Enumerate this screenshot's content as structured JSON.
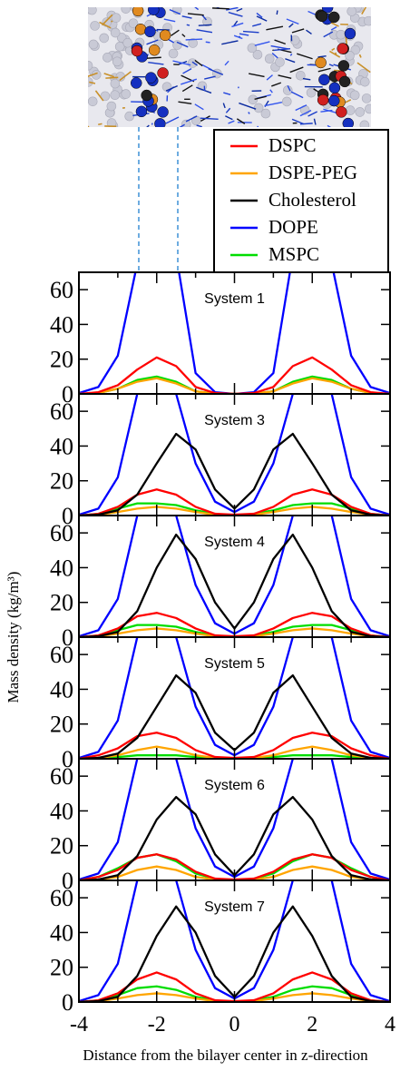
{
  "chart_data": {
    "type": "line",
    "xlabel": "Distance from the bilayer center in z-direction",
    "ylabel": "Mass density (kg/m³)",
    "xlim": [
      -4,
      4
    ],
    "ylim": [
      0,
      70
    ],
    "xticks": [
      -4,
      -2,
      0,
      2,
      4
    ],
    "yticks": [
      0,
      20,
      40,
      60
    ],
    "legend": {
      "position": "top-right",
      "entries": [
        {
          "name": "DSPC",
          "color": "#ff0000"
        },
        {
          "name": "DSPE-PEG",
          "color": "#ffa500"
        },
        {
          "name": "Cholesterol",
          "color": "#000000"
        },
        {
          "name": "DOPE",
          "color": "#0000ff"
        },
        {
          "name": "MSPC",
          "color": "#00dd00"
        }
      ]
    },
    "x": [
      -4.0,
      -3.5,
      -3.0,
      -2.5,
      -2.0,
      -1.5,
      -1.0,
      -0.5,
      0.0,
      0.5,
      1.0,
      1.5,
      2.0,
      2.5,
      3.0,
      3.5,
      4.0
    ],
    "panels": [
      {
        "title": "System 1",
        "series": [
          {
            "name": "DOPE",
            "values": [
              0.5,
              4,
              22,
              75,
              110,
              80,
              12,
              1,
              0,
              1,
              12,
              80,
              110,
              75,
              22,
              4,
              0.5
            ]
          },
          {
            "name": "DSPC",
            "values": [
              0,
              1,
              5,
              14,
              21,
              16,
              4,
              0.5,
              0,
              0.5,
              4,
              16,
              21,
              14,
              5,
              1,
              0
            ]
          },
          {
            "name": "DSPE-PEG",
            "values": [
              0,
              0.5,
              3,
              7,
              9,
              6,
              1.5,
              0.2,
              0,
              0.2,
              1.5,
              6,
              9,
              7,
              3,
              0.5,
              0
            ]
          },
          {
            "name": "MSPC",
            "values": [
              0,
              0.5,
              3,
              8,
              10,
              7,
              1.5,
              0.2,
              0,
              0.2,
              1.5,
              7,
              10,
              8,
              3,
              0.5,
              0
            ]
          }
        ]
      },
      {
        "title": "System 3",
        "series": [
          {
            "name": "DOPE",
            "values": [
              0.5,
              4,
              22,
              70,
              105,
              70,
              30,
              8,
              2,
              8,
              30,
              70,
              105,
              70,
              22,
              4,
              0.5
            ]
          },
          {
            "name": "DSPC",
            "values": [
              0,
              1,
              5,
              12,
              15,
              12,
              5,
              1,
              0.5,
              1,
              5,
              12,
              15,
              12,
              5,
              1,
              0
            ]
          },
          {
            "name": "DSPE-PEG",
            "values": [
              0,
              0.5,
              2,
              4,
              5,
              4,
              2,
              0.5,
              0,
              0.5,
              2,
              4,
              5,
              4,
              2,
              0.5,
              0
            ]
          },
          {
            "name": "MSPC",
            "values": [
              0,
              1,
              4,
              7,
              7,
              6,
              3,
              1,
              0,
              1,
              3,
              6,
              7,
              7,
              4,
              1,
              0
            ]
          },
          {
            "name": "Cholesterol",
            "values": [
              0,
              0.5,
              3,
              12,
              30,
              47,
              38,
              15,
              4,
              15,
              38,
              47,
              30,
              12,
              3,
              0.5,
              0
            ]
          }
        ]
      },
      {
        "title": "System 4",
        "series": [
          {
            "name": "DOPE",
            "values": [
              0.5,
              4,
              22,
              70,
              100,
              70,
              30,
              8,
              2,
              8,
              30,
              70,
              100,
              70,
              22,
              4,
              0.5
            ]
          },
          {
            "name": "DSPC",
            "values": [
              0,
              1,
              5,
              12,
              14,
              11,
              5,
              1,
              0.5,
              1,
              5,
              11,
              14,
              12,
              5,
              1,
              0
            ]
          },
          {
            "name": "DSPE-PEG",
            "values": [
              0,
              0.5,
              2,
              4,
              5,
              4,
              2,
              0.5,
              0,
              0.5,
              2,
              4,
              5,
              4,
              2,
              0.5,
              0
            ]
          },
          {
            "name": "MSPC",
            "values": [
              0,
              1,
              4,
              7,
              7,
              6,
              3,
              1,
              0,
              1,
              3,
              6,
              7,
              7,
              4,
              1,
              0
            ]
          },
          {
            "name": "Cholesterol",
            "values": [
              0,
              0.5,
              3,
              15,
              40,
              59,
              45,
              20,
              5,
              20,
              45,
              59,
              40,
              15,
              3,
              0.5,
              0
            ]
          }
        ]
      },
      {
        "title": "System 5",
        "series": [
          {
            "name": "DOPE",
            "values": [
              0.5,
              4,
              22,
              70,
              100,
              70,
              30,
              8,
              2,
              8,
              30,
              70,
              100,
              70,
              22,
              4,
              0.5
            ]
          },
          {
            "name": "DSPC",
            "values": [
              0,
              2,
              6,
              13,
              15,
              12,
              5,
              1,
              0.5,
              1,
              5,
              12,
              15,
              13,
              6,
              2,
              0
            ]
          },
          {
            "name": "DSPE-PEG",
            "values": [
              0,
              0.5,
              2,
              5,
              7,
              5,
              2,
              0.5,
              0,
              0.5,
              2,
              5,
              7,
              5,
              2,
              0.5,
              0
            ]
          },
          {
            "name": "MSPC",
            "values": [
              0,
              0.5,
              1,
              2,
              2,
              2,
              1,
              0.5,
              0,
              0.5,
              1,
              2,
              2,
              2,
              1,
              0.5,
              0
            ]
          },
          {
            "name": "Cholesterol",
            "values": [
              0,
              0.5,
              3,
              12,
              30,
              48,
              38,
              15,
              5,
              15,
              38,
              48,
              30,
              12,
              3,
              0.5,
              0
            ]
          }
        ]
      },
      {
        "title": "System 6",
        "series": [
          {
            "name": "DOPE",
            "values": [
              0.5,
              4,
              22,
              70,
              100,
              70,
              30,
              8,
              2,
              8,
              30,
              70,
              100,
              70,
              22,
              4,
              0.5
            ]
          },
          {
            "name": "DSPC",
            "values": [
              0,
              2,
              6,
              13,
              15,
              12,
              5,
              1,
              0.5,
              1,
              5,
              12,
              15,
              13,
              6,
              2,
              0
            ]
          },
          {
            "name": "DSPE-PEG",
            "values": [
              0,
              0.5,
              2,
              6,
              8,
              6,
              2,
              0.5,
              0,
              0.5,
              2,
              6,
              8,
              6,
              2,
              0.5,
              0
            ]
          },
          {
            "name": "MSPC",
            "values": [
              0,
              2,
              7,
              13,
              15,
              11,
              4,
              1,
              0,
              1,
              4,
              11,
              15,
              13,
              7,
              2,
              0
            ]
          },
          {
            "name": "Cholesterol",
            "values": [
              0,
              0.5,
              3,
              14,
              35,
              48,
              38,
              15,
              3,
              15,
              38,
              48,
              35,
              14,
              3,
              0.5,
              0
            ]
          }
        ]
      },
      {
        "title": "System 7",
        "series": [
          {
            "name": "DOPE",
            "values": [
              0.5,
              4,
              22,
              70,
              100,
              70,
              30,
              8,
              2,
              8,
              30,
              70,
              100,
              70,
              22,
              4,
              0.5
            ]
          },
          {
            "name": "DSPC",
            "values": [
              0,
              1,
              5,
              13,
              17,
              13,
              5,
              1,
              0.5,
              1,
              5,
              13,
              17,
              13,
              5,
              1,
              0
            ]
          },
          {
            "name": "DSPE-PEG",
            "values": [
              0,
              0.5,
              2,
              4,
              5,
              4,
              2,
              0.5,
              0,
              0.5,
              2,
              4,
              5,
              4,
              2,
              0.5,
              0
            ]
          },
          {
            "name": "MSPC",
            "values": [
              0,
              1,
              4,
              8,
              9,
              7,
              3,
              1,
              0,
              1,
              3,
              7,
              9,
              8,
              4,
              1,
              0
            ]
          },
          {
            "name": "Cholesterol",
            "values": [
              0,
              0.5,
              3,
              15,
              38,
              55,
              40,
              15,
              3,
              15,
              40,
              55,
              38,
              15,
              3,
              0.5,
              0
            ]
          }
        ]
      }
    ]
  }
}
